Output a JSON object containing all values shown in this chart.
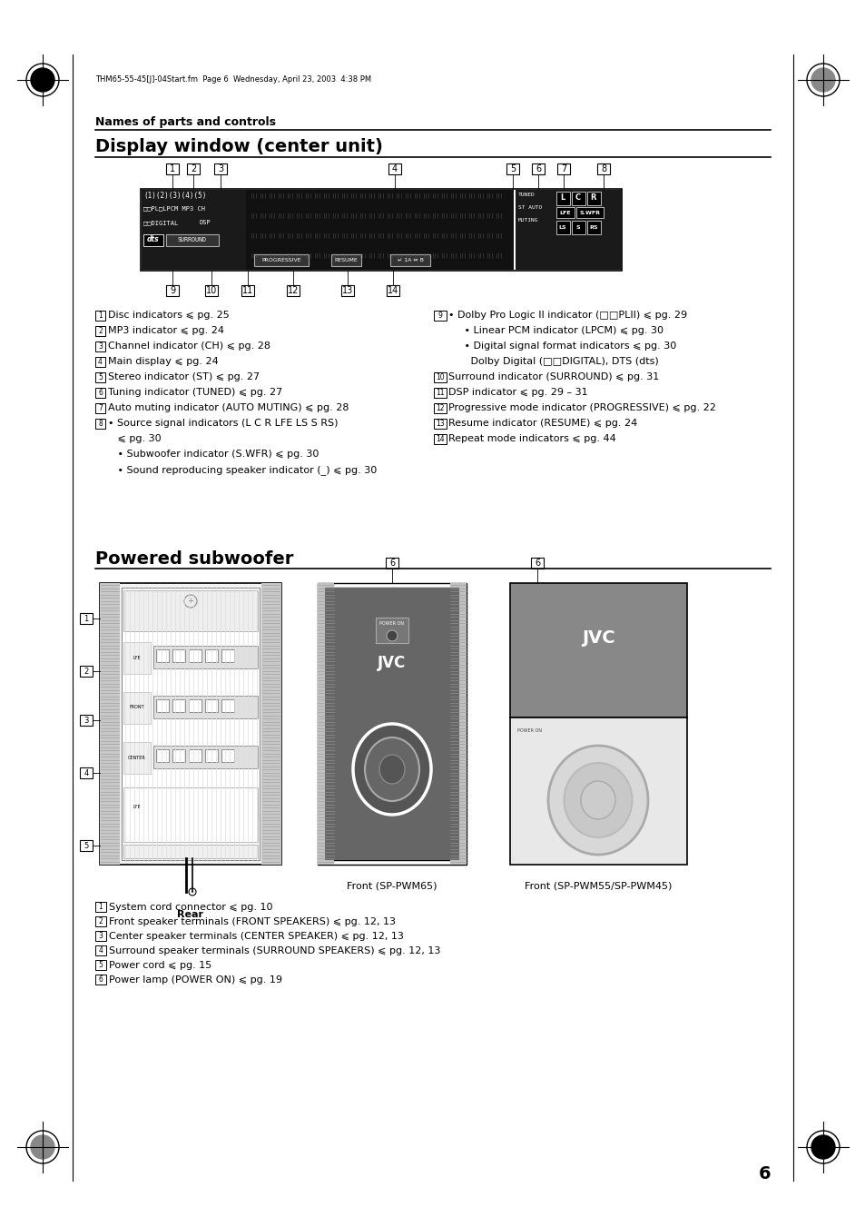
{
  "page_bg": "#ffffff",
  "header_text": "THM65-55-45[J]-04Start.fm  Page 6  Wednesday, April 23, 2003  4:38 PM",
  "title_section1": "Names of parts and controls",
  "title_section2": "Display window (center unit)",
  "title_section3": "Powered subwoofer",
  "page_number": "6",
  "display_items_left": [
    [
      "1",
      "Disc indicators ⩽ pg. 25"
    ],
    [
      "2",
      "MP3 indicator ⩽ pg. 24"
    ],
    [
      "3",
      "Channel indicator (CH) ⩽ pg. 28"
    ],
    [
      "4",
      "Main display ⩽ pg. 24"
    ],
    [
      "5",
      "Stereo indicator (ST) ⩽ pg. 27"
    ],
    [
      "6",
      "Tuning indicator (TUNED) ⩽ pg. 27"
    ],
    [
      "7",
      "Auto muting indicator (AUTO MUTING) ⩽ pg. 28"
    ],
    [
      "8",
      "• Source signal indicators (L C R LFE LS S RS)"
    ],
    [
      "",
      "   ⩽ pg. 30"
    ],
    [
      "",
      "   • Subwoofer indicator (S.WFR) ⩽ pg. 30"
    ],
    [
      "",
      "   • Sound reproducing speaker indicator (_) ⩽ pg. 30"
    ]
  ],
  "display_items_right": [
    [
      "9",
      "• Dolby Pro Logic II indicator (□□PLII) ⩽ pg. 29"
    ],
    [
      "",
      "     • Linear PCM indicator (LPCM) ⩽ pg. 30"
    ],
    [
      "",
      "     • Digital signal format indicators ⩽ pg. 30"
    ],
    [
      "",
      "       Dolby Digital (□□DIGITAL), DTS (dts)"
    ],
    [
      "10",
      "Surround indicator (SURROUND) ⩽ pg. 31"
    ],
    [
      "11",
      "DSP indicator ⩽ pg. 29 – 31"
    ],
    [
      "12",
      "Progressive mode indicator (PROGRESSIVE) ⩽ pg. 22"
    ],
    [
      "13",
      "Resume indicator (RESUME) ⩽ pg. 24"
    ],
    [
      "14",
      "Repeat mode indicators ⩽ pg. 44"
    ]
  ],
  "subwoofer_items": [
    [
      "1",
      "System cord connector ⩽ pg. 10"
    ],
    [
      "2",
      "Front speaker terminals (FRONT SPEAKERS) ⩽ pg. 12, 13"
    ],
    [
      "3",
      "Center speaker terminals (CENTER SPEAKER) ⩽ pg. 12, 13"
    ],
    [
      "4",
      "Surround speaker terminals (SURROUND SPEAKERS) ⩽ pg. 12, 13"
    ],
    [
      "5",
      "Power cord ⩽ pg. 15"
    ],
    [
      "6",
      "Power lamp (POWER ON) ⩽ pg. 19"
    ]
  ]
}
